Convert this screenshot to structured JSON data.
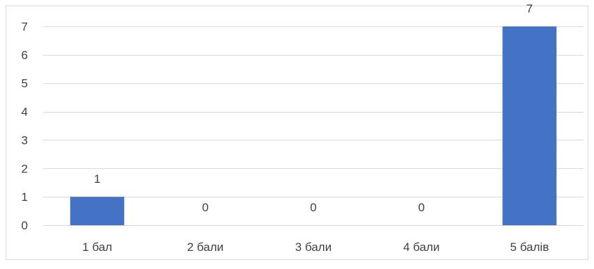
{
  "chart_data": {
    "type": "bar",
    "title": "",
    "xlabel": "",
    "ylabel": "",
    "categories": [
      "1 бал",
      "2 бали",
      "3 бали",
      "4 бали",
      "5 балів"
    ],
    "values": [
      1,
      0,
      0,
      0,
      7
    ],
    "ylim": [
      0,
      7
    ],
    "yticks": [
      0,
      1,
      2,
      3,
      4,
      5,
      6,
      7
    ],
    "grid": true,
    "legend": "none",
    "data_labels": true,
    "bar_color": "#4472C4",
    "grid_color": "#D9D9D9",
    "border_color": "#D9D9D9",
    "text_color": "#404040"
  }
}
